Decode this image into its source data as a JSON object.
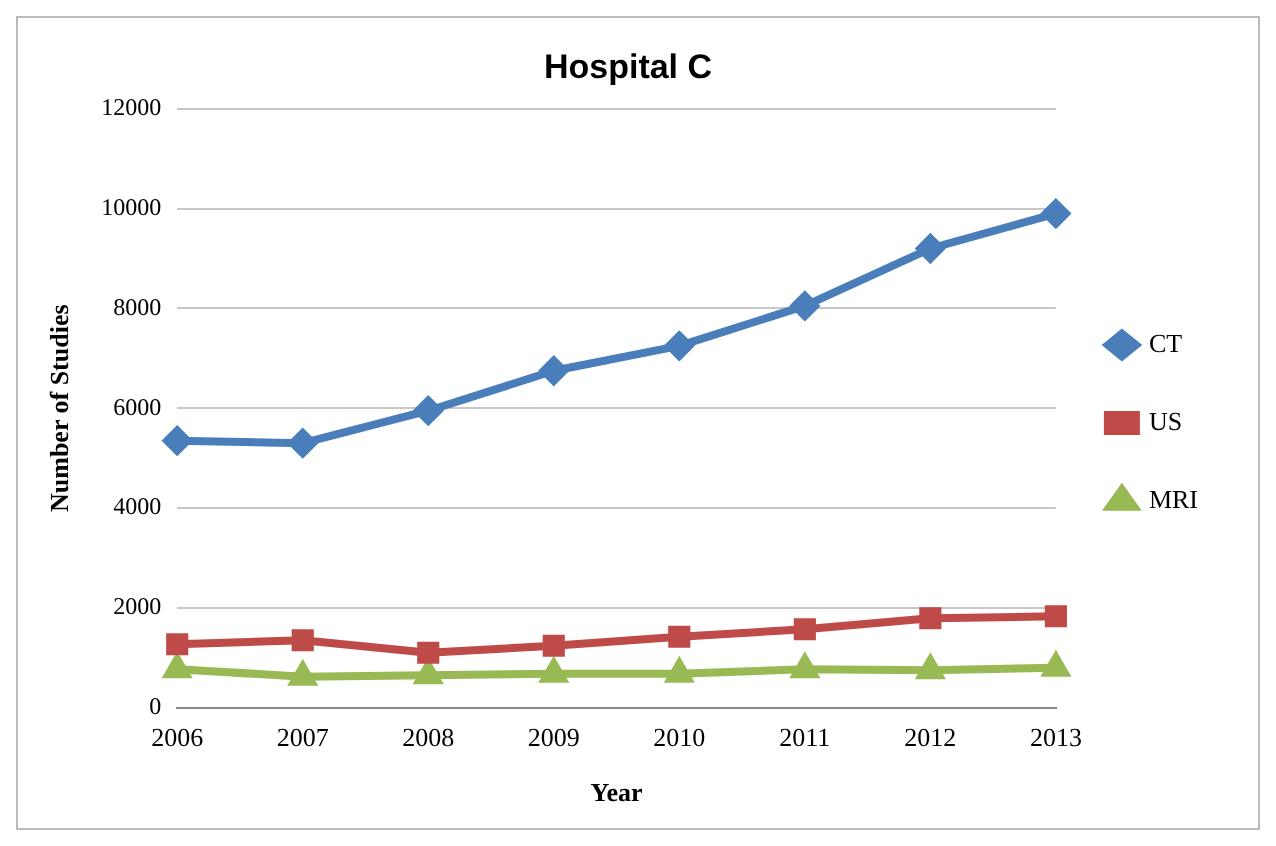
{
  "chart_data": {
    "type": "line",
    "title": "Hospital C",
    "xlabel": "Year",
    "ylabel": "Number of Studies",
    "categories": [
      "2006",
      "2007",
      "2008",
      "2009",
      "2010",
      "2011",
      "2012",
      "2013"
    ],
    "series": [
      {
        "name": "CT",
        "color": "#4a7ebb",
        "marker": "diamond",
        "values": [
          5350,
          5300,
          5950,
          6750,
          7250,
          8050,
          9200,
          9900
        ]
      },
      {
        "name": "US",
        "color": "#be4b48",
        "marker": "square",
        "values": [
          1270,
          1350,
          1100,
          1240,
          1420,
          1570,
          1790,
          1830
        ]
      },
      {
        "name": "MRI",
        "color": "#98b954",
        "marker": "triangle",
        "values": [
          770,
          620,
          650,
          680,
          680,
          770,
          750,
          800
        ]
      }
    ],
    "ylim": [
      0,
      12000
    ],
    "yticks": [
      0,
      2000,
      4000,
      6000,
      8000,
      10000,
      12000
    ],
    "grid": "y",
    "legend": "right"
  }
}
